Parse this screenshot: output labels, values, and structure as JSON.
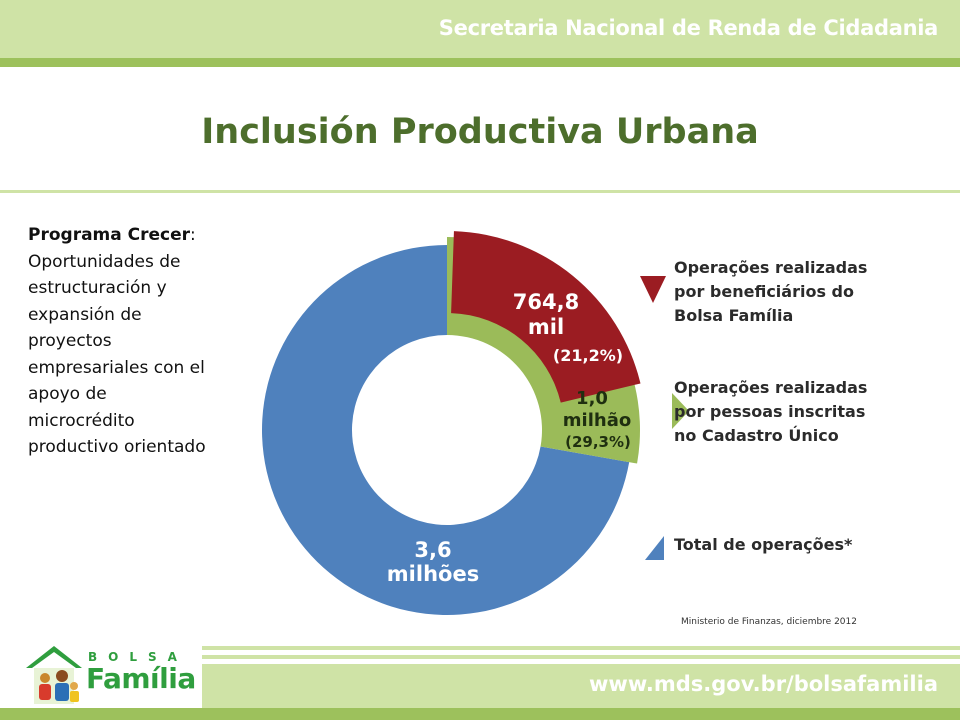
{
  "header": {
    "org": "Secretaria Nacional de Renda de Cidadania"
  },
  "page": {
    "title": "Inclusión Productiva Urbana"
  },
  "sidebar": {
    "program_name": "Programa Crecer",
    "colon": ":",
    "description": "Oportunidades de estructuración y expansión de proyectos empresariales con el apoyo de microcrédito productivo orientado"
  },
  "chart_data": {
    "type": "pie",
    "style": "donut",
    "title": "",
    "slices": [
      {
        "name": "Total de operações*",
        "value": 3.6,
        "label_lines": [
          "3,6",
          "milhões"
        ],
        "pct_label": "",
        "color": "#4f81bd"
      },
      {
        "name": "Operações realizadas por pessoas inscritas no Cadastro Único",
        "value": 1.0,
        "label_lines": [
          "1,0",
          "milhão"
        ],
        "pct_label": "(29,3%)",
        "color": "#9bbb59"
      },
      {
        "name": "Operações realizadas por beneficiários do Bolsa Família",
        "value": 0.7648,
        "label_lines": [
          "764,8",
          "mil"
        ],
        "pct_label": "(21,2%)",
        "color": "#9b1c22"
      }
    ],
    "legend": [
      {
        "text_lines": [
          "Operações realizadas",
          "por beneficiários do",
          "Bolsa Família"
        ],
        "color": "#9b1c22"
      },
      {
        "text_lines": [
          "Operações realizadas",
          "por pessoas inscritas",
          "no Cadastro Único"
        ],
        "color": "#9bbb59"
      },
      {
        "text_lines": [
          "Total de operações*"
        ],
        "color": "#4f81bd"
      }
    ],
    "legend_position": "right"
  },
  "source": {
    "text": "Ministerio de Finanzas, diciembre 2012"
  },
  "footer": {
    "url": "www.mds.gov.br/bolsafamilia"
  },
  "logo": {
    "line1": "BOLSA",
    "line2": "Família"
  }
}
